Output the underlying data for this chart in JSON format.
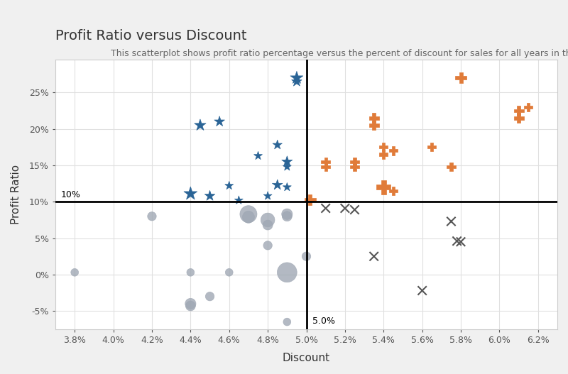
{
  "title": "Profit Ratio versus Discount",
  "subtitle": "This scatterplot shows profit ratio percentage versus the percent of discount for sales for all years in the data set.",
  "xlabel": "Discount",
  "ylabel": "Profit Ratio",
  "xlim": [
    0.037,
    0.063
  ],
  "ylim": [
    -0.075,
    0.295
  ],
  "xticks": [
    0.038,
    0.04,
    0.042,
    0.044,
    0.046,
    0.048,
    0.05,
    0.052,
    0.054,
    0.056,
    0.058,
    0.06,
    0.062
  ],
  "yticks": [
    -0.05,
    0.0,
    0.05,
    0.1,
    0.15,
    0.2,
    0.25
  ],
  "vline_x": 0.05,
  "hline_y": 0.1,
  "vline_label": "5.0%",
  "hline_label": "10%",
  "bg_color": "#f5f5f5",
  "plot_bg_color": "#ffffff",
  "grid_color": "#e0e0e0",
  "blue_stars": {
    "color": "#2a6496",
    "marker": "*",
    "points": [
      [
        0.0495,
        0.27
      ],
      [
        0.0495,
        0.265
      ],
      [
        0.0485,
        0.178
      ],
      [
        0.0475,
        0.163
      ],
      [
        0.049,
        0.155
      ],
      [
        0.049,
        0.148
      ],
      [
        0.0485,
        0.123
      ],
      [
        0.049,
        0.12
      ],
      [
        0.0455,
        0.21
      ],
      [
        0.0445,
        0.205
      ],
      [
        0.044,
        0.111
      ],
      [
        0.045,
        0.108
      ],
      [
        0.046,
        0.122
      ],
      [
        0.048,
        0.108
      ],
      [
        0.0465,
        0.102
      ]
    ],
    "sizes": [
      180,
      120,
      100,
      80,
      130,
      80,
      120,
      80,
      120,
      150,
      200,
      120,
      80,
      80,
      80
    ]
  },
  "orange_plus": {
    "color": "#e07b39",
    "marker": "P",
    "points": [
      [
        0.0502,
        0.103
      ],
      [
        0.051,
        0.155
      ],
      [
        0.051,
        0.148
      ],
      [
        0.0525,
        0.155
      ],
      [
        0.0525,
        0.148
      ],
      [
        0.0535,
        0.205
      ],
      [
        0.0535,
        0.215
      ],
      [
        0.054,
        0.175
      ],
      [
        0.054,
        0.165
      ],
      [
        0.0545,
        0.17
      ],
      [
        0.0565,
        0.175
      ],
      [
        0.0575,
        0.148
      ],
      [
        0.054,
        0.12
      ],
      [
        0.0545,
        0.115
      ],
      [
        0.058,
        0.27
      ],
      [
        0.061,
        0.215
      ],
      [
        0.061,
        0.225
      ],
      [
        0.0615,
        0.23
      ]
    ],
    "sizes": [
      120,
      80,
      80,
      80,
      80,
      100,
      100,
      80,
      80,
      80,
      80,
      80,
      200,
      80,
      120,
      100,
      100,
      80
    ]
  },
  "gray_circles": {
    "color": "#a0a8b4",
    "marker": "o",
    "points": [
      [
        0.038,
        0.003
      ],
      [
        0.042,
        0.08
      ],
      [
        0.044,
        0.003
      ],
      [
        0.044,
        -0.04
      ],
      [
        0.044,
        -0.043
      ],
      [
        0.045,
        -0.03
      ],
      [
        0.046,
        0.003
      ],
      [
        0.047,
        0.083
      ],
      [
        0.047,
        0.079
      ],
      [
        0.048,
        0.075
      ],
      [
        0.048,
        0.068
      ],
      [
        0.048,
        0.04
      ],
      [
        0.049,
        0.083
      ],
      [
        0.049,
        0.08
      ],
      [
        0.049,
        0.003
      ],
      [
        0.049,
        -0.065
      ],
      [
        0.05,
        0.025
      ]
    ],
    "sizes": [
      60,
      80,
      60,
      120,
      100,
      80,
      60,
      300,
      150,
      200,
      100,
      80,
      120,
      100,
      400,
      60,
      80
    ]
  },
  "dark_cross": {
    "color": "#555555",
    "marker": "x",
    "points": [
      [
        0.051,
        0.091
      ],
      [
        0.052,
        0.091
      ],
      [
        0.0525,
        0.089
      ],
      [
        0.0535,
        0.025
      ],
      [
        0.056,
        -0.022
      ],
      [
        0.0575,
        0.073
      ],
      [
        0.0578,
        0.046
      ],
      [
        0.058,
        0.045
      ]
    ],
    "sizes": [
      80,
      80,
      80,
      80,
      80,
      80,
      80,
      80
    ]
  }
}
